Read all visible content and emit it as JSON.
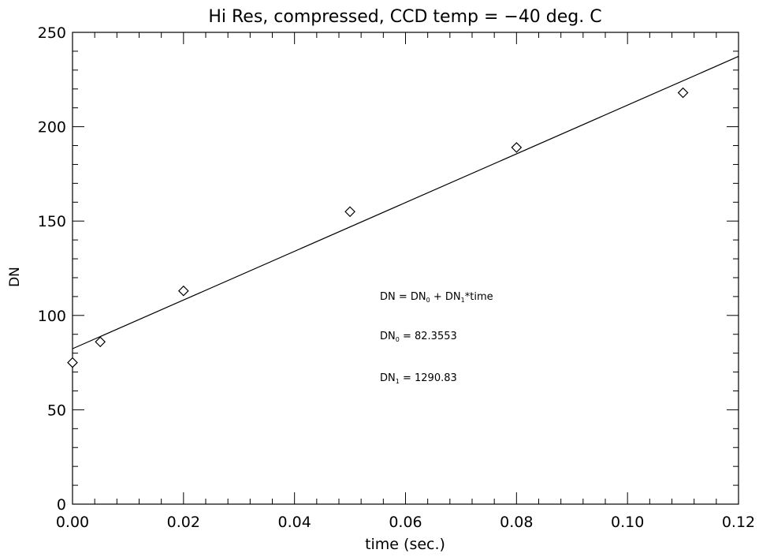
{
  "chart_data": {
    "type": "scatter",
    "title": "Hi Res, compressed, CCD temp = −40 deg. C",
    "xlabel": "time (sec.)",
    "ylabel": "DN",
    "xlim": [
      0,
      0.12
    ],
    "ylim": [
      0,
      250
    ],
    "x_ticks": [
      0,
      0.02,
      0.04,
      0.06,
      0.08,
      0.1,
      0.12
    ],
    "x_tick_labels": [
      "0.00",
      "0.02",
      "0.04",
      "0.06",
      "0.08",
      "0.10",
      "0.12"
    ],
    "y_ticks": [
      0,
      50,
      100,
      150,
      200,
      250
    ],
    "y_tick_labels": [
      "0",
      "50",
      "100",
      "150",
      "200",
      "250"
    ],
    "grid": false,
    "series": [
      {
        "marker": "diamond",
        "x": [
          0.0,
          0.005,
          0.02,
          0.05,
          0.08,
          0.11
        ],
        "y": [
          75,
          86,
          113,
          155,
          189,
          218
        ]
      }
    ],
    "fit_line": {
      "intercept": 82.3553,
      "slope": 1290.83
    },
    "annotations": {
      "equation": {
        "lhs": "DN",
        "eq1": " = DN",
        "sub0": "0",
        "plus": " + DN",
        "sub1": "1",
        "tail": "*time"
      },
      "dn0": {
        "prefix": "DN",
        "sub": "0",
        "text": " = 82.3553"
      },
      "dn1": {
        "prefix": "DN",
        "sub": "1",
        "text": " = 1290.83"
      }
    }
  }
}
